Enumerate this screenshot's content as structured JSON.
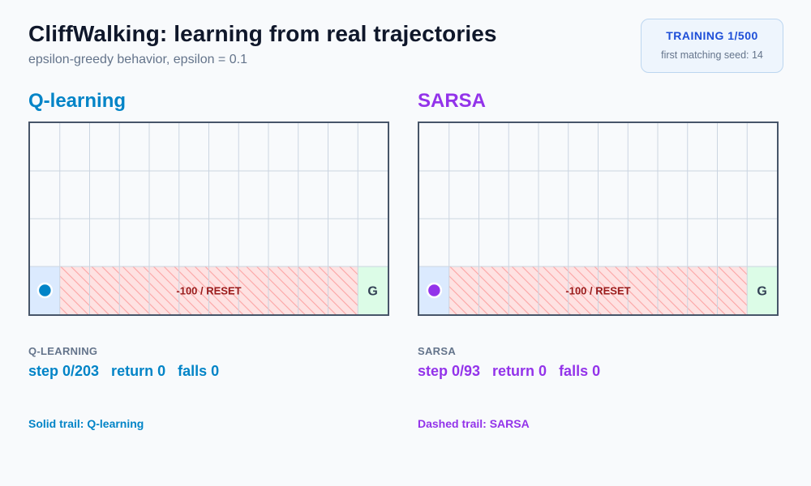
{
  "header": {
    "title": "CliffWalking: learning from real trajectories",
    "subtitle": "epsilon-greedy behavior, epsilon = 0.1"
  },
  "badge": {
    "status": "TRAINING  1/500",
    "seed": "first matching seed: 14"
  },
  "grid_spec": {
    "cols": 12,
    "rows": 4
  },
  "colors": {
    "qlearning": "#0284c7",
    "sarsa": "#9333ea",
    "cliff_fill": "#fee2e2",
    "cliff_hatch": "#fca5a5",
    "cliff_text": "#991b1b",
    "start_fill": "#dbeafe",
    "goal_fill": "#dcfce7"
  },
  "panels": [
    {
      "key": "qlearning",
      "heading": "Q-learning",
      "cliff_label": "-100 / RESET",
      "goal_label": "G",
      "agent_icon": "agent-dot",
      "stats_label": "Q-LEARNING",
      "stats_text": "step 0/203   return 0   falls 0",
      "legend": "Solid trail: Q-learning"
    },
    {
      "key": "sarsa",
      "heading": "SARSA",
      "cliff_label": "-100 / RESET",
      "goal_label": "G",
      "agent_icon": "agent-dot",
      "stats_label": "SARSA",
      "stats_text": "step 0/93   return 0   falls 0",
      "legend": "Dashed trail: SARSA"
    }
  ]
}
